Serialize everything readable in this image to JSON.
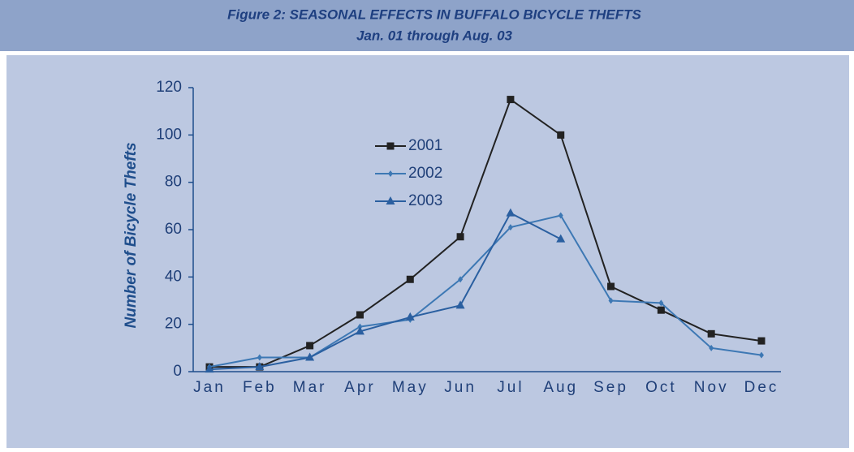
{
  "chart_data": {
    "type": "line",
    "title": "Figure 2:  SEASONAL EFFECTS IN BUFFALO BICYCLE THEFTS",
    "subtitle": "Jan. 01 through Aug. 03",
    "ylabel": "Number of Bicycle Thefts",
    "categories": [
      "Jan",
      "Feb",
      "Mar",
      "Apr",
      "May",
      "Jun",
      "Jul",
      "Aug",
      "Sep",
      "Oct",
      "Nov",
      "Dec"
    ],
    "series": [
      {
        "name": "2001",
        "color": "#222222",
        "marker": "square",
        "values": [
          2,
          2,
          11,
          24,
          39,
          57,
          115,
          100,
          36,
          26,
          16,
          13
        ]
      },
      {
        "name": "2002",
        "color": "#3d78b4",
        "marker": "diamond",
        "values": [
          2,
          6,
          6,
          19,
          22,
          39,
          61,
          66,
          30,
          29,
          10,
          7
        ]
      },
      {
        "name": "2003",
        "color": "#2a5fa0",
        "marker": "triangle",
        "values": [
          1,
          2,
          6,
          17,
          23,
          28,
          67,
          56,
          null,
          null,
          null,
          null
        ]
      }
    ],
    "ylim": [
      0,
      120
    ],
    "yticks": [
      0,
      20,
      40,
      60,
      80,
      100,
      120
    ],
    "grid": false
  }
}
